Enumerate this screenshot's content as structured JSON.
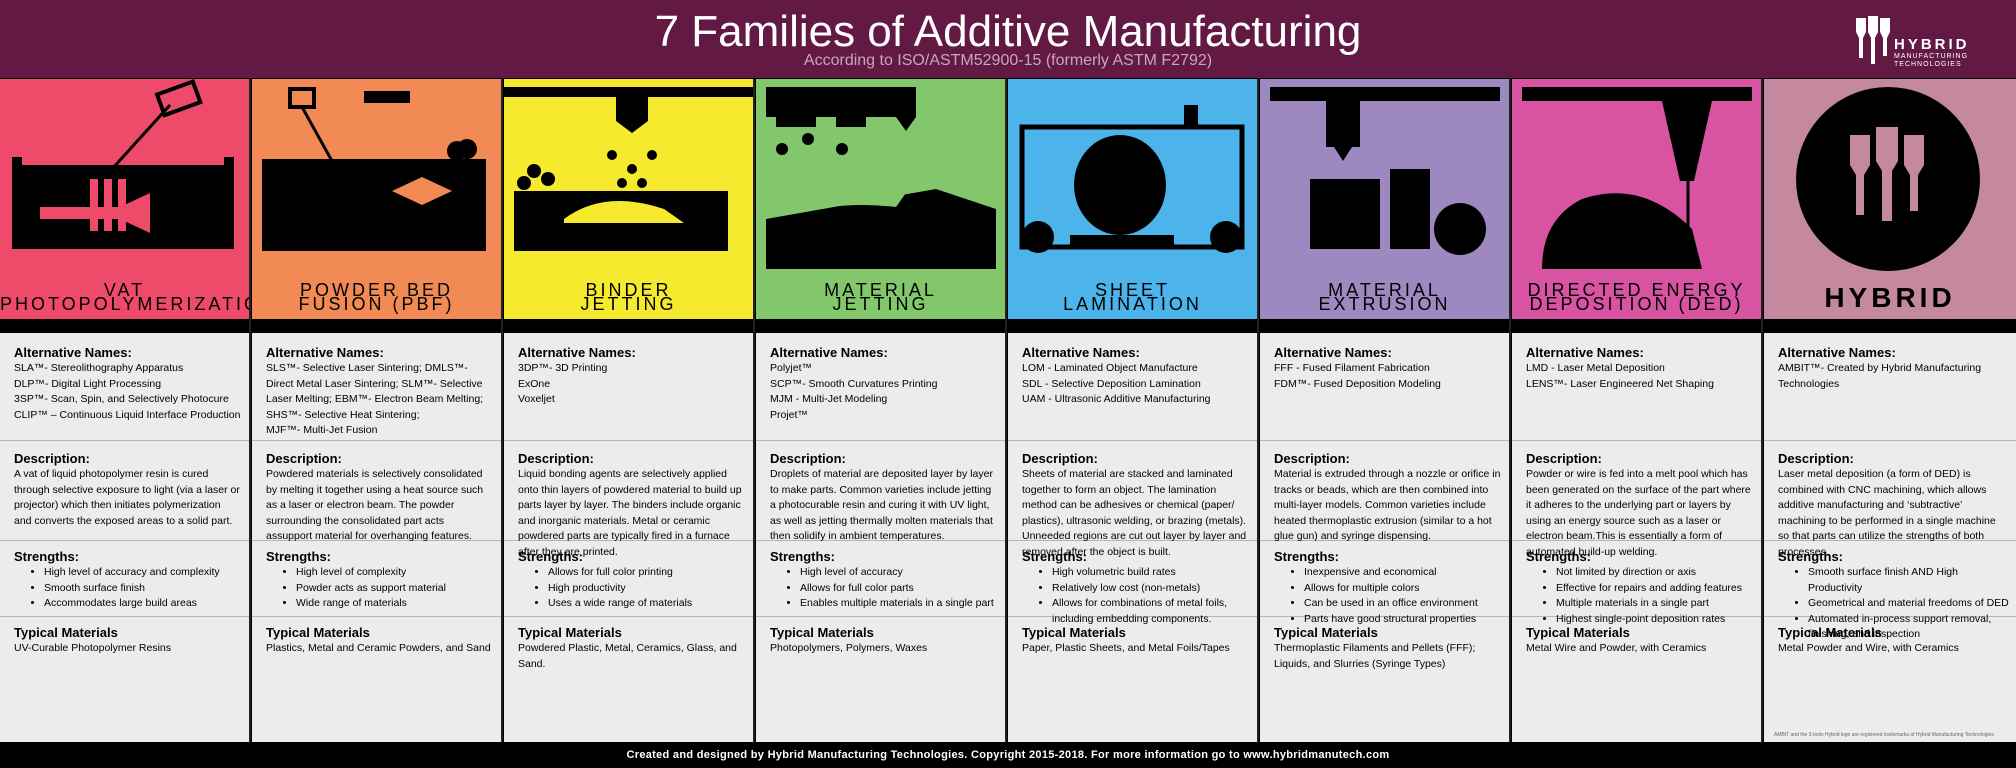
{
  "header": {
    "title": "7 Families of Additive Manufacturing",
    "subtitle": "According to ISO/ASTM52900-15 (formerly ASTM F2792)",
    "logo_word": "HYBRID",
    "logo_sub": "MANUFACTURING TECHNOLOGIES"
  },
  "colors": {
    "header_bg": "#621944",
    "panel_bg": "#ececec",
    "vat": "#ee4b6b",
    "pbf": "#f18a54",
    "binder": "#f6ea2f",
    "material_jetting": "#83c76c",
    "sheet": "#4db4eb",
    "extrusion": "#9e88c0",
    "ded": "#d853a2",
    "hybrid": "#c4889f"
  },
  "labels": {
    "alt": "Alternative Names:",
    "desc": "Description:",
    "str": "Strengths:",
    "mat": "Typical Materials"
  },
  "columns": [
    {
      "label1": "VAT",
      "label2": "PHOTOPOLYMERIZATION",
      "alt": [
        "SLA™- Stereolithography Apparatus",
        "DLP™- Digital Light Processing",
        "3SP™- Scan, Spin, and Selectively Photocure",
        "CLIP™ –  Continuous Liquid Interface Production"
      ],
      "desc": "A vat of liquid photopolymer resin is cured through selective exposure to light (via a laser or projector) which then initiates polymerization and converts the exposed areas to a solid part.",
      "strengths": [
        "High level of accuracy and complexity",
        "Smooth surface finish",
        "Accommodates large build areas"
      ],
      "materials": "UV-Curable Photopolymer Resins"
    },
    {
      "label1": "POWDER BED",
      "label2": "FUSION (PBF)",
      "alt": [
        "SLS™- Selective Laser Sintering; DMLS™-",
        "Direct Metal Laser Sintering; SLM™- Selective",
        "Laser Melting; EBM™- Electron Beam Melting;",
        "SHS™- Selective Heat Sintering;",
        "MJF™- Multi-Jet Fusion"
      ],
      "desc": "Powdered materials is selectively consolidated by melting it together using a heat source such as a laser or electron beam. The powder surrounding the consolidated part acts assupport material for overhanging features.",
      "strengths": [
        "High level of complexity",
        "Powder acts as support material",
        "Wide range of materials"
      ],
      "materials": "Plastics, Metal and Ceramic Powders, and Sand"
    },
    {
      "label1": "BINDER",
      "label2": "JETTING",
      "alt": [
        "3DP™- 3D Printing",
        "ExOne",
        "Voxeljet"
      ],
      "desc": "Liquid bonding agents are selectively applied onto thin layers of powdered material to build up parts layer by layer. The binders include organic and inorganic materials. Metal or ceramic powdered parts are typically fired in a furnace after they are printed.",
      "strengths": [
        "Allows for full color printing",
        "High productivity",
        "Uses a wide range of materials"
      ],
      "materials": "Powdered Plastic, Metal, Ceramics, Glass, and Sand."
    },
    {
      "label1": "MATERIAL",
      "label2": "JETTING",
      "alt": [
        "Polyjet™",
        "SCP™- Smooth Curvatures Printing",
        "MJM - Multi-Jet Modeling",
        "Projet™"
      ],
      "desc": "Droplets of material are deposited layer by layer to make parts. Common varieties include jetting a photocurable resin and curing it with UV light, as well as jetting thermally molten materials that then solidify in ambient temperatures.",
      "strengths": [
        "High level of accuracy",
        "Allows for full color parts",
        "Enables multiple materials in a single part"
      ],
      "materials": "Photopolymers, Polymers, Waxes"
    },
    {
      "label1": "SHEET",
      "label2": "LAMINATION",
      "alt": [
        "LOM - Laminated Object Manufacture",
        "SDL - Selective Deposition Lamination",
        "UAM - Ultrasonic Additive Manufacturing"
      ],
      "desc": "Sheets of material are stacked and laminated together to form an object. The lamination method can be adhesives or chemical (paper/ plastics), ultrasonic welding, or brazing (metals). Unneeded regions are cut out layer by layer and removed after the object is built.",
      "strengths": [
        "High volumetric build rates",
        "Relatively low cost (non-metals)",
        "Allows for combinations of metal foils, including embedding components."
      ],
      "materials": "Paper, Plastic Sheets, and Metal Foils/Tapes"
    },
    {
      "label1": "MATERIAL",
      "label2": "EXTRUSION",
      "alt": [
        "FFF - Fused Filament Fabrication",
        "FDM™- Fused Deposition Modeling"
      ],
      "desc": "Material is extruded through a nozzle or orifice in tracks or beads, which are then combined into multi-layer models. Common varieties include heated thermoplastic extrusion (similar to a hot glue gun) and syringe dispensing.",
      "strengths": [
        "Inexpensive and economical",
        "Allows for multiple colors",
        "Can be used in an office environment",
        "Parts have good structural properties"
      ],
      "materials": "Thermoplastic Filaments and Pellets (FFF); Liquids, and Slurries (Syringe Types)"
    },
    {
      "label1": "DIRECTED ENERGY",
      "label2": "DEPOSITION (DED)",
      "alt": [
        "LMD - Laser Metal Deposition",
        "LENS™- Laser Engineered Net Shaping"
      ],
      "desc": "Powder or wire is fed into a melt pool which has been generated on the surface of the part where it adheres to the underlying part or layers by using an energy source such as a laser or electron beam.This is essentially a form of automated build-up welding.",
      "strengths": [
        "Not limited by direction or axis",
        "Effective for repairs and adding features",
        "Multiple materials in a single part",
        "Highest single-point deposition rates"
      ],
      "materials": "Metal Wire and Powder, with Ceramics"
    },
    {
      "label1": "HYBRID",
      "label2": "",
      "alt": [
        "AMBIT™- Created by Hybrid Manufacturing",
        "Technologies"
      ],
      "desc": "Laser metal deposition (a form of DED) is combined with CNC machining, which allows additive manufacturing and ‘subtractive’ machining to be performed in a single machine so that parts can utilize the strengths of both processes.",
      "strengths": [
        "Smooth surface finish AND High Productivity",
        "Geometrical and material freedoms of DED",
        "Automated in-process support removal, finishing, and inspection"
      ],
      "materials": "Metal Powder and Wire, with Ceramics",
      "legal": "AMBIT and the 3-tools Hybrid logo are registered trademarks of Hybrid Manufacturing Technologies"
    }
  ],
  "footer": "Created and designed by Hybrid Manufacturing Technologies. Copyright 2015-2018. For more information go to www.hybridmanutech.com"
}
